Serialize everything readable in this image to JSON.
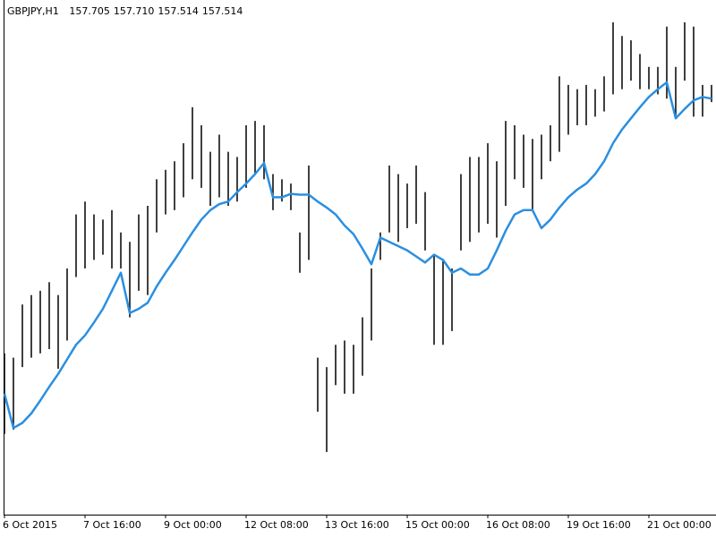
{
  "chart_data": {
    "type": "ohlc",
    "symbol": "GBPJPY,H1",
    "ohlc_header": [
      "157.705",
      "157.710",
      "157.514",
      "157.514"
    ],
    "categories": [
      "6 Oct 2015",
      null,
      null,
      null,
      null,
      null,
      null,
      null,
      null,
      "7 Oct 16:00",
      null,
      null,
      null,
      null,
      null,
      null,
      null,
      null,
      "9 Oct 00:00",
      null,
      null,
      null,
      null,
      null,
      null,
      null,
      null,
      "12 Oct 08:00",
      null,
      null,
      null,
      null,
      null,
      null,
      null,
      null,
      "13 Oct 16:00",
      null,
      null,
      null,
      null,
      null,
      null,
      null,
      null,
      "15 Oct 00:00",
      null,
      null,
      null,
      null,
      null,
      null,
      null,
      null,
      "16 Oct 08:00",
      null,
      null,
      null,
      null,
      null,
      null,
      null,
      null,
      "19 Oct 16:00",
      null,
      null,
      null,
      null,
      null,
      null,
      null,
      null,
      "21 Oct 00:00",
      null,
      null,
      null,
      null,
      null,
      null,
      null
    ],
    "high": [
      154.58,
      154.53,
      155.15,
      155.26,
      155.31,
      155.41,
      155.26,
      155.57,
      156.2,
      156.35,
      156.2,
      156.14,
      156.25,
      155.99,
      155.88,
      156.2,
      156.3,
      156.61,
      156.72,
      156.82,
      157.03,
      157.45,
      157.24,
      156.93,
      157.13,
      156.93,
      156.87,
      157.24,
      157.29,
      157.24,
      156.67,
      156.61,
      156.56,
      155.99,
      156.77,
      154.53,
      154.42,
      154.68,
      154.73,
      154.68,
      155.0,
      155.57,
      155.99,
      156.77,
      156.67,
      156.56,
      156.77,
      156.46,
      155.73,
      155.67,
      155.57,
      156.67,
      156.87,
      156.87,
      157.03,
      156.82,
      157.29,
      157.24,
      157.13,
      157.08,
      157.13,
      157.24,
      157.81,
      157.71,
      157.66,
      157.71,
      157.66,
      157.81,
      158.44,
      158.28,
      158.23,
      158.07,
      157.92,
      157.92,
      158.39,
      157.92,
      158.44,
      158.39,
      157.71,
      157.71
    ],
    "low": [
      153.64,
      153.69,
      154.42,
      154.53,
      154.58,
      154.63,
      154.4,
      154.73,
      155.47,
      155.57,
      155.67,
      155.73,
      155.57,
      155.57,
      155.0,
      155.31,
      155.26,
      155.99,
      156.2,
      156.25,
      156.4,
      156.61,
      156.51,
      156.3,
      156.4,
      156.3,
      156.35,
      156.51,
      156.67,
      156.61,
      156.25,
      156.35,
      156.25,
      155.52,
      155.67,
      153.9,
      153.43,
      154.21,
      154.11,
      154.11,
      154.32,
      154.73,
      155.67,
      155.99,
      155.88,
      156.04,
      156.09,
      155.78,
      154.68,
      154.68,
      154.84,
      155.78,
      155.88,
      155.99,
      156.09,
      155.93,
      156.3,
      156.61,
      156.51,
      156.25,
      156.61,
      156.82,
      156.93,
      157.13,
      157.24,
      157.24,
      157.34,
      157.4,
      157.6,
      157.66,
      157.76,
      157.66,
      157.66,
      157.6,
      157.55,
      157.34,
      157.76,
      157.34,
      157.34,
      157.51
    ],
    "bar_color": "#000000",
    "ma": {
      "color": "#2b8fe0",
      "values": [
        154.11,
        153.71,
        153.77,
        153.88,
        154.03,
        154.19,
        154.34,
        154.51,
        154.68,
        154.79,
        154.94,
        155.1,
        155.31,
        155.52,
        155.05,
        155.1,
        155.17,
        155.36,
        155.52,
        155.67,
        155.83,
        155.99,
        156.14,
        156.25,
        156.32,
        156.35,
        156.46,
        156.56,
        156.67,
        156.8,
        156.4,
        156.4,
        156.44,
        156.43,
        156.43,
        156.35,
        156.28,
        156.2,
        156.07,
        155.97,
        155.8,
        155.62,
        155.93,
        155.88,
        155.83,
        155.78,
        155.71,
        155.64,
        155.73,
        155.67,
        155.52,
        155.57,
        155.5,
        155.5,
        155.57,
        155.78,
        156.01,
        156.2,
        156.25,
        156.25,
        156.04,
        156.14,
        156.28,
        156.4,
        156.49,
        156.56,
        156.67,
        156.82,
        157.03,
        157.19,
        157.32,
        157.45,
        157.57,
        157.66,
        157.74,
        157.32,
        157.43,
        157.53,
        157.57,
        157.55
      ]
    },
    "ylim": [
      152.7,
      158.7
    ]
  }
}
